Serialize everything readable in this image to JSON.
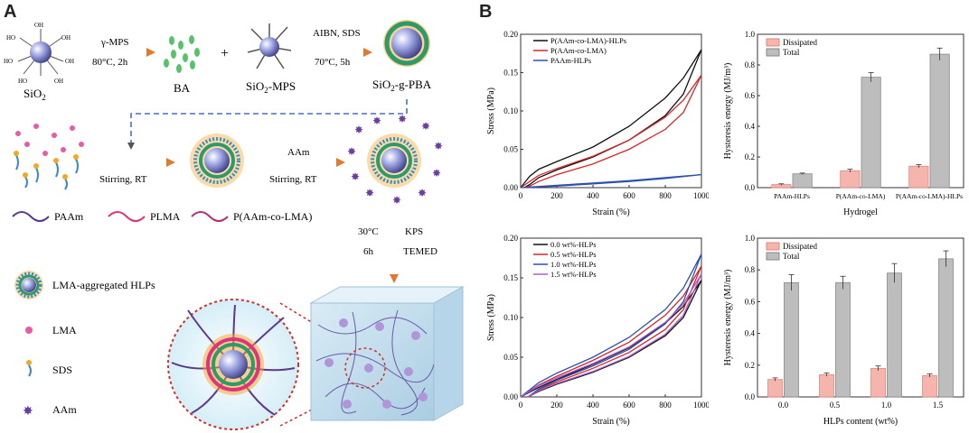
{
  "panels": {
    "a": "A",
    "b": "B"
  },
  "scheme": {
    "sio2": "SiO",
    "sio2_sub": "2",
    "step1_top": "γ-MPS",
    "step1_bottom": "80°C, 2h",
    "ba": "BA",
    "plus": "+",
    "sio2_mps": "SiO",
    "sio2_mps_sub": "2",
    "sio2_mps_suffix": "-MPS",
    "step2_top": "AIBN, SDS",
    "step2_bottom": "70°C, 5h",
    "sio2_g_pba": "SiO",
    "sio2_g_pba_sub": "2",
    "sio2_g_pba_suffix": "-g-PBA",
    "oh": "OH",
    "ho": "HO",
    "stirring1": "Stirring, RT",
    "step4_top": "AAm",
    "stirring2": "Stirring, RT",
    "temp": "30°C",
    "time": "6h",
    "kps": "KPS",
    "temed": "TEMED",
    "legend": {
      "paam": "PAAm",
      "plma": "PLMA",
      "copolymer": "P(AAm-co-LMA)",
      "hlps": "LMA-aggregated HLPs",
      "lma": "LMA",
      "sds": "SDS",
      "aam": "AAm"
    },
    "colors": {
      "paam": "#5b3a8c",
      "plma": "#e0337a",
      "core": "#6a72c8",
      "shell": "#2e9a6a",
      "arrow": "#e07a2e"
    }
  },
  "chart_data": [
    {
      "type": "line",
      "title": "",
      "xlabel": "Strain (%)",
      "ylabel": "Stress (MPa)",
      "xlim": [
        0,
        1000
      ],
      "ylim": [
        0,
        0.2
      ],
      "xticks": [
        "0",
        "200",
        "400",
        "600",
        "800",
        "1000"
      ],
      "yticks": [
        "0.00",
        "0.05",
        "0.10",
        "0.15",
        "0.20"
      ],
      "legend_position": "top-left",
      "series": [
        {
          "name": "P(AAm-co-LMA)-HLPs",
          "color": "#111111",
          "loading": [
            [
              0,
              0
            ],
            [
              50,
              0.015
            ],
            [
              100,
              0.024
            ],
            [
              200,
              0.034
            ],
            [
              400,
              0.053
            ],
            [
              600,
              0.08
            ],
            [
              800,
              0.117
            ],
            [
              900,
              0.143
            ],
            [
              1000,
              0.18
            ]
          ],
          "unloading": [
            [
              1000,
              0.18
            ],
            [
              900,
              0.122
            ],
            [
              800,
              0.094
            ],
            [
              600,
              0.062
            ],
            [
              400,
              0.04
            ],
            [
              200,
              0.023
            ],
            [
              100,
              0.013
            ],
            [
              50,
              0.004
            ],
            [
              20,
              0
            ]
          ]
        },
        {
          "name": "P(AAm-co-LMA)",
          "color": "#d62728",
          "loading": [
            [
              0,
              0
            ],
            [
              50,
              0.008
            ],
            [
              100,
              0.016
            ],
            [
              200,
              0.025
            ],
            [
              400,
              0.041
            ],
            [
              600,
              0.062
            ],
            [
              800,
              0.092
            ],
            [
              900,
              0.114
            ],
            [
              1000,
              0.147
            ]
          ],
          "unloading": [
            [
              1000,
              0.147
            ],
            [
              900,
              0.098
            ],
            [
              800,
              0.076
            ],
            [
              600,
              0.05
            ],
            [
              400,
              0.031
            ],
            [
              200,
              0.017
            ],
            [
              100,
              0.008
            ],
            [
              50,
              0.002
            ],
            [
              20,
              0
            ]
          ]
        },
        {
          "name": "PAAm-HLPs",
          "color": "#2b50b0",
          "loading": [
            [
              0,
              0
            ],
            [
              200,
              0.003
            ],
            [
              400,
              0.006
            ],
            [
              600,
              0.009
            ],
            [
              800,
              0.013
            ],
            [
              1000,
              0.017
            ]
          ],
          "unloading": [
            [
              1000,
              0.017
            ],
            [
              800,
              0.012
            ],
            [
              600,
              0.008
            ],
            [
              400,
              0.005
            ],
            [
              200,
              0.002
            ],
            [
              0,
              0
            ]
          ]
        }
      ]
    },
    {
      "type": "bar",
      "title": "",
      "xlabel": "Hydrogel",
      "ylabel": "Hysteresis energy (MJ/m³)",
      "ylim": [
        0,
        1.0
      ],
      "yticks": [
        "0.0",
        "0.2",
        "0.4",
        "0.6",
        "0.8",
        "1.0"
      ],
      "categories": [
        "PAAm-HLPs",
        "P(AAm-co-LMA)",
        "P(AAm-co-LMA)-HLPs"
      ],
      "legend_position": "top-left",
      "series": [
        {
          "name": "Dissipated",
          "color": "#f5b5ad",
          "values": [
            0.02,
            0.11,
            0.14
          ],
          "errors": [
            0.005,
            0.01,
            0.01
          ]
        },
        {
          "name": "Total",
          "color": "#bdbdbd",
          "values": [
            0.09,
            0.72,
            0.87
          ],
          "errors": [
            0.005,
            0.03,
            0.04
          ]
        }
      ]
    },
    {
      "type": "line",
      "title": "",
      "xlabel": "Strain (%)",
      "ylabel": "Stress (MPa)",
      "xlim": [
        0,
        1000
      ],
      "ylim": [
        0,
        0.2
      ],
      "xticks": [
        "0",
        "200",
        "400",
        "600",
        "800",
        "1000"
      ],
      "yticks": [
        "0.00",
        "0.05",
        "0.10",
        "0.15",
        "0.20"
      ],
      "legend_position": "top-left",
      "series": [
        {
          "name": "0.0 wt%-HLPs",
          "color": "#111111",
          "loading": [
            [
              0,
              0
            ],
            [
              100,
              0.012
            ],
            [
              200,
              0.022
            ],
            [
              400,
              0.041
            ],
            [
              600,
              0.062
            ],
            [
              800,
              0.093
            ],
            [
              900,
              0.114
            ],
            [
              1000,
              0.147
            ]
          ],
          "unloading": [
            [
              1000,
              0.147
            ],
            [
              900,
              0.1
            ],
            [
              800,
              0.077
            ],
            [
              600,
              0.05
            ],
            [
              400,
              0.031
            ],
            [
              200,
              0.016
            ],
            [
              100,
              0.007
            ],
            [
              40,
              0
            ]
          ]
        },
        {
          "name": "0.5 wt%-HLPs",
          "color": "#d62728",
          "loading": [
            [
              0,
              0
            ],
            [
              100,
              0.015
            ],
            [
              200,
              0.026
            ],
            [
              400,
              0.046
            ],
            [
              600,
              0.069
            ],
            [
              800,
              0.103
            ],
            [
              900,
              0.127
            ],
            [
              1000,
              0.165
            ]
          ],
          "unloading": [
            [
              1000,
              0.165
            ],
            [
              900,
              0.11
            ],
            [
              800,
              0.085
            ],
            [
              600,
              0.056
            ],
            [
              400,
              0.036
            ],
            [
              200,
              0.019
            ],
            [
              100,
              0.009
            ],
            [
              40,
              0
            ]
          ]
        },
        {
          "name": "1.0 wt%-HLPs",
          "color": "#2b50b0",
          "loading": [
            [
              0,
              0
            ],
            [
              100,
              0.018
            ],
            [
              200,
              0.03
            ],
            [
              400,
              0.05
            ],
            [
              600,
              0.075
            ],
            [
              800,
              0.11
            ],
            [
              900,
              0.137
            ],
            [
              1000,
              0.18
            ]
          ],
          "unloading": [
            [
              1000,
              0.18
            ],
            [
              900,
              0.12
            ],
            [
              800,
              0.092
            ],
            [
              600,
              0.06
            ],
            [
              400,
              0.039
            ],
            [
              200,
              0.021
            ],
            [
              100,
              0.01
            ],
            [
              40,
              0
            ]
          ]
        },
        {
          "name": "1.5 wt%-HLPs",
          "color": "#b05cc8",
          "loading": [
            [
              0,
              0
            ],
            [
              100,
              0.014
            ],
            [
              200,
              0.024
            ],
            [
              400,
              0.042
            ],
            [
              600,
              0.063
            ],
            [
              800,
              0.094
            ],
            [
              900,
              0.117
            ],
            [
              1000,
              0.155
            ]
          ],
          "unloading": [
            [
              1000,
              0.155
            ],
            [
              900,
              0.103
            ],
            [
              800,
              0.079
            ],
            [
              600,
              0.051
            ],
            [
              400,
              0.032
            ],
            [
              200,
              0.017
            ],
            [
              100,
              0.008
            ],
            [
              40,
              0
            ]
          ]
        }
      ]
    },
    {
      "type": "bar",
      "title": "",
      "xlabel": "HLPs content (wt%)",
      "ylabel": "Hysteresis energy (MJ/m³)",
      "ylim": [
        0,
        1.0
      ],
      "yticks": [
        "0.0",
        "0.2",
        "0.4",
        "0.6",
        "0.8",
        "1.0"
      ],
      "categories": [
        "0.0",
        "0.5",
        "1.0",
        "1.5"
      ],
      "legend_position": "top-left",
      "series": [
        {
          "name": "Dissipated",
          "color": "#f5b5ad",
          "values": [
            0.11,
            0.14,
            0.18,
            0.135
          ],
          "errors": [
            0.01,
            0.01,
            0.015,
            0.01
          ]
        },
        {
          "name": "Total",
          "color": "#bdbdbd",
          "values": [
            0.72,
            0.72,
            0.78,
            0.87
          ],
          "errors": [
            0.05,
            0.04,
            0.06,
            0.05
          ]
        }
      ]
    }
  ]
}
